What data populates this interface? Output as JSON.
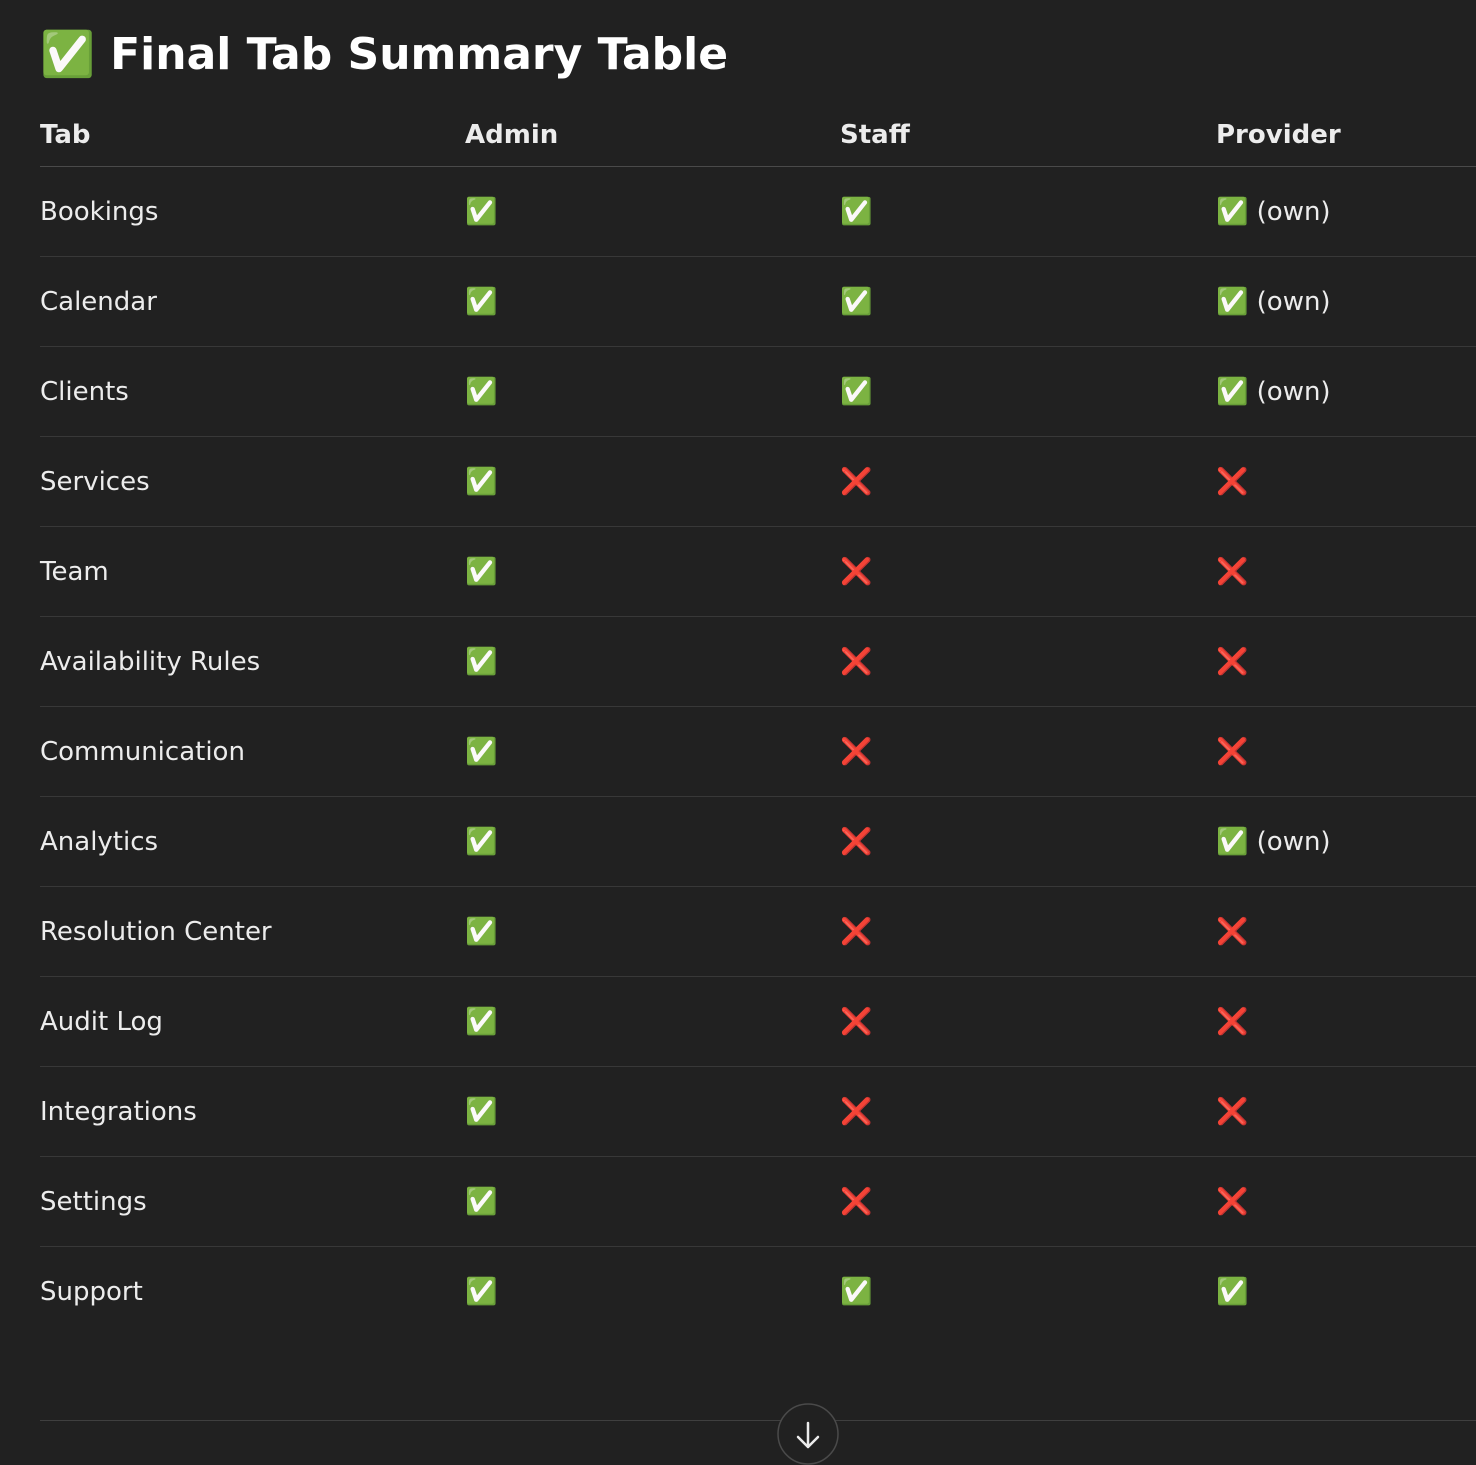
{
  "title": "✅ Final Tab Summary Table",
  "table": {
    "header": [
      "Tab",
      "Admin",
      "Staff",
      "Provider"
    ],
    "rows": [
      [
        "Bookings",
        "✅",
        "✅",
        "✅ (own)"
      ],
      [
        "Calendar",
        "✅",
        "✅",
        "✅ (own)"
      ],
      [
        "Clients",
        "✅",
        "✅",
        "✅ (own)"
      ],
      [
        "Services",
        "✅",
        "❌",
        "❌"
      ],
      [
        "Team",
        "✅",
        "❌",
        "❌"
      ],
      [
        "Availability Rules",
        "✅",
        "❌",
        "❌"
      ],
      [
        "Communication",
        "✅",
        "❌",
        "❌"
      ],
      [
        "Analytics",
        "✅",
        "❌",
        "✅ (own)"
      ],
      [
        "Resolution Center",
        "✅",
        "❌",
        "❌"
      ],
      [
        "Audit Log",
        "✅",
        "❌",
        "❌"
      ],
      [
        "Integrations",
        "✅",
        "❌",
        "❌"
      ],
      [
        "Settings",
        "✅",
        "❌",
        "❌"
      ],
      [
        "Support",
        "✅",
        "✅",
        "✅"
      ]
    ]
  }
}
